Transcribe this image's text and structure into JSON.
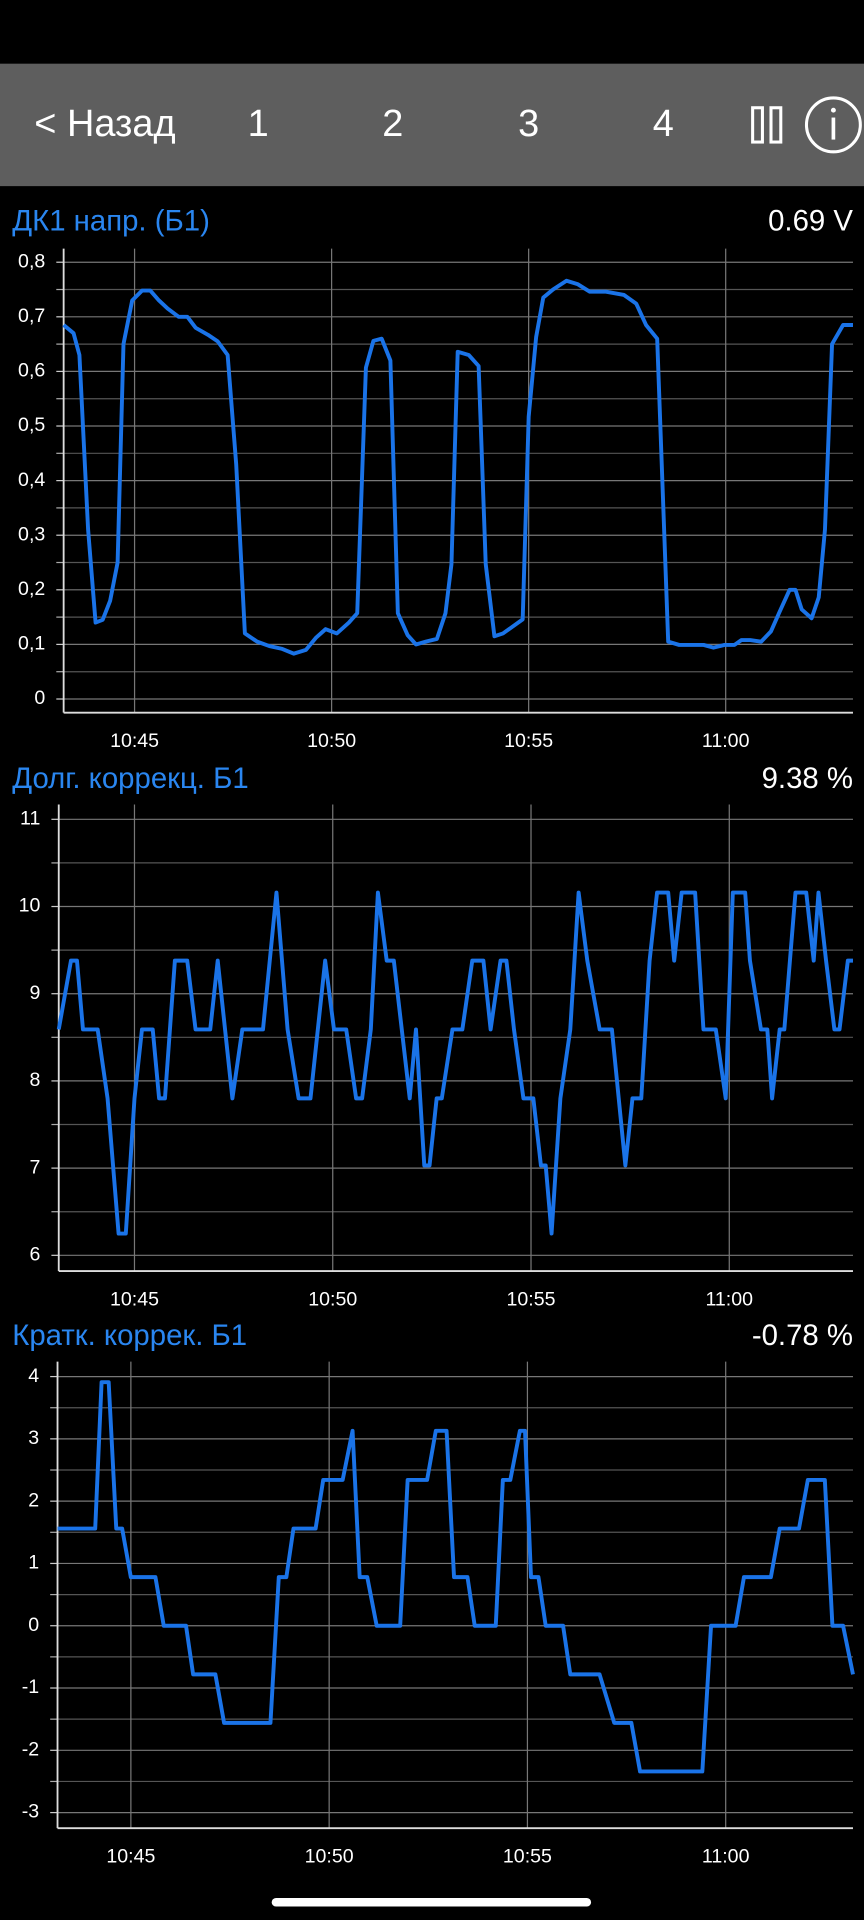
{
  "nav": {
    "back": "< Назад",
    "tabs": [
      "1",
      "2",
      "3",
      "4"
    ]
  },
  "chart_data": [
    {
      "type": "line",
      "title": "ДК1 напр. (Б1)",
      "readout": "0.69  V",
      "color": "#1a73e8",
      "grid": true,
      "xlim": [
        643.2,
        663.23
      ],
      "ylim": [
        -0.025,
        0.825
      ],
      "xticks": [
        {
          "value": 645,
          "label": "10:45"
        },
        {
          "value": 650,
          "label": "10:50"
        },
        {
          "value": 655,
          "label": "10:55"
        },
        {
          "value": 660,
          "label": "11:00"
        }
      ],
      "yticks": [
        {
          "value": 0,
          "label": "0"
        },
        {
          "value": 0.1,
          "label": "0,1"
        },
        {
          "value": 0.2,
          "label": "0,2"
        },
        {
          "value": 0.3,
          "label": "0,3"
        },
        {
          "value": 0.4,
          "label": "0,4"
        },
        {
          "value": 0.5,
          "label": "0,5"
        },
        {
          "value": 0.6,
          "label": "0,6"
        },
        {
          "value": 0.7,
          "label": "0,7"
        },
        {
          "value": 0.8,
          "label": "0,8"
        }
      ],
      "x": [
        643.2,
        643.45,
        643.6,
        643.82,
        644.01,
        644.19,
        644.38,
        644.57,
        644.72,
        644.94,
        645.19,
        645.4,
        645.62,
        645.84,
        646.12,
        646.34,
        646.55,
        646.86,
        647.11,
        647.36,
        647.58,
        647.8,
        648.11,
        648.42,
        648.73,
        649.04,
        649.35,
        649.6,
        649.85,
        650.13,
        650.44,
        650.65,
        650.87,
        651.06,
        651.27,
        651.49,
        651.68,
        651.93,
        652.14,
        652.39,
        652.67,
        652.89,
        653.04,
        653.2,
        653.48,
        653.73,
        653.91,
        654.13,
        654.35,
        654.54,
        654.85,
        655.0,
        655.19,
        655.37,
        655.62,
        655.96,
        656.24,
        656.55,
        656.96,
        657.42,
        657.73,
        657.98,
        658.26,
        658.54,
        658.82,
        659.13,
        659.44,
        659.69,
        659.97,
        660.22,
        660.4,
        660.62,
        660.9,
        661.15,
        661.37,
        661.62,
        661.77,
        661.93,
        662.18,
        662.36,
        662.52,
        662.7,
        662.98,
        663.23
      ],
      "values": [
        0.685,
        0.67,
        0.63,
        0.31,
        0.14,
        0.145,
        0.18,
        0.25,
        0.65,
        0.73,
        0.748,
        0.748,
        0.73,
        0.715,
        0.7,
        0.7,
        0.68,
        0.667,
        0.655,
        0.63,
        0.43,
        0.12,
        0.105,
        0.097,
        0.092,
        0.083,
        0.09,
        0.112,
        0.128,
        0.12,
        0.14,
        0.157,
        0.607,
        0.656,
        0.66,
        0.62,
        0.157,
        0.117,
        0.1,
        0.105,
        0.11,
        0.157,
        0.247,
        0.636,
        0.63,
        0.61,
        0.247,
        0.115,
        0.12,
        0.13,
        0.146,
        0.517,
        0.663,
        0.735,
        0.75,
        0.766,
        0.76,
        0.746,
        0.746,
        0.74,
        0.724,
        0.685,
        0.66,
        0.105,
        0.099,
        0.099,
        0.099,
        0.094,
        0.099,
        0.099,
        0.108,
        0.108,
        0.105,
        0.124,
        0.16,
        0.2,
        0.2,
        0.164,
        0.148,
        0.186,
        0.31,
        0.65,
        0.685,
        0.685
      ]
    },
    {
      "type": "line",
      "title": "Долг. коррекц. Б1",
      "readout": "9.38  %",
      "color": "#1a73e8",
      "grid": true,
      "xlim": [
        643.09,
        663.12
      ],
      "ylim": [
        5.82,
        11.17
      ],
      "xticks": [
        {
          "value": 645,
          "label": "10:45"
        },
        {
          "value": 650,
          "label": "10:50"
        },
        {
          "value": 655,
          "label": "10:55"
        },
        {
          "value": 660,
          "label": "11:00"
        }
      ],
      "yticks": [
        6,
        7,
        8,
        9,
        10,
        11
      ],
      "x": [
        643.09,
        643.4,
        643.55,
        643.7,
        644.07,
        644.32,
        644.6,
        644.78,
        645,
        645.19,
        645.46,
        645.62,
        645.77,
        646.02,
        646.33,
        646.54,
        646.91,
        647.1,
        647.47,
        647.72,
        648.24,
        648.58,
        648.86,
        649.14,
        649.44,
        649.81,
        650.03,
        650.34,
        650.59,
        650.74,
        650.96,
        651.14,
        651.36,
        651.54,
        651.94,
        652.1,
        652.31,
        652.44,
        652.62,
        652.75,
        653.02,
        653.27,
        653.52,
        653.8,
        653.98,
        654.23,
        654.38,
        654.57,
        654.81,
        655.06,
        655.25,
        655.37,
        655.52,
        655.74,
        655.99,
        656.2,
        656.42,
        656.73,
        657.04,
        657.38,
        657.56,
        657.78,
        657.99,
        658.18,
        658.46,
        658.61,
        658.8,
        659.14,
        659.35,
        659.66,
        659.91,
        660.09,
        660.4,
        660.52,
        660.8,
        660.96,
        661.08,
        661.27,
        661.39,
        661.67,
        661.94,
        662.13,
        662.25,
        662.44,
        662.65,
        662.78,
        662.99,
        663.12
      ],
      "values": [
        8.59,
        9.38,
        9.38,
        8.59,
        8.59,
        7.8,
        6.25,
        6.25,
        7.8,
        8.59,
        8.59,
        7.8,
        7.8,
        9.38,
        9.38,
        8.59,
        8.59,
        9.38,
        7.8,
        8.59,
        8.59,
        10.16,
        8.59,
        7.8,
        7.8,
        9.38,
        8.59,
        8.59,
        7.8,
        7.8,
        8.59,
        10.16,
        9.38,
        9.38,
        7.8,
        8.59,
        7.03,
        7.03,
        7.8,
        7.8,
        8.59,
        8.59,
        9.38,
        9.38,
        8.59,
        9.38,
        9.38,
        8.59,
        7.8,
        7.8,
        7.03,
        7.03,
        6.25,
        7.8,
        8.59,
        10.16,
        9.38,
        8.59,
        8.59,
        7.03,
        7.8,
        7.8,
        9.38,
        10.16,
        10.16,
        9.38,
        10.16,
        10.16,
        8.59,
        8.59,
        7.8,
        10.16,
        10.16,
        9.38,
        8.59,
        8.59,
        7.8,
        8.59,
        8.59,
        10.16,
        10.16,
        9.38,
        10.16,
        9.38,
        8.59,
        8.59,
        9.38,
        9.38
      ]
    },
    {
      "type": "line",
      "title": "Кратк. коррек. Б1",
      "readout": "-0.78  %",
      "color": "#1a73e8",
      "grid": true,
      "xlim": [
        643.15,
        663.21
      ],
      "ylim": [
        -3.25,
        4.24
      ],
      "xticks": [
        {
          "value": 645,
          "label": "10:45"
        },
        {
          "value": 650,
          "label": "10:50"
        },
        {
          "value": 655,
          "label": "10:55"
        },
        {
          "value": 660,
          "label": "11:00"
        }
      ],
      "yticks": [
        -3,
        -2,
        -1,
        0,
        1,
        2,
        3,
        4
      ],
      "x": [
        643.15,
        644.1,
        644.26,
        644.44,
        644.63,
        644.78,
        645,
        645.62,
        645.83,
        646.39,
        646.57,
        647.13,
        647.35,
        648.52,
        648.73,
        648.92,
        649.1,
        649.66,
        649.85,
        650.34,
        650.59,
        650.77,
        650.96,
        651.2,
        651.79,
        651.98,
        652.47,
        652.69,
        652.96,
        653.15,
        653.49,
        653.67,
        654.2,
        654.38,
        654.57,
        654.81,
        654.94,
        655.09,
        655.28,
        655.46,
        655.9,
        656.08,
        656.82,
        657.19,
        657.62,
        657.84,
        659.41,
        659.63,
        660.25,
        660.46,
        661.14,
        661.36,
        661.85,
        662.07,
        662.5,
        662.69,
        662.96,
        663.21
      ],
      "values": [
        1.56,
        1.56,
        3.91,
        3.91,
        1.56,
        1.56,
        0.78,
        0.78,
        0,
        0,
        -0.78,
        -0.78,
        -1.56,
        -1.56,
        0.78,
        0.78,
        1.56,
        1.56,
        2.34,
        2.34,
        3.13,
        0.78,
        0.78,
        0,
        0,
        2.34,
        2.34,
        3.13,
        3.13,
        0.78,
        0.78,
        0,
        0,
        2.34,
        2.34,
        3.13,
        3.13,
        0.78,
        0.78,
        0,
        0,
        -0.78,
        -0.78,
        -1.56,
        -1.56,
        -2.34,
        -2.34,
        0,
        0,
        0.78,
        0.78,
        1.56,
        1.56,
        2.34,
        2.34,
        0,
        0,
        -0.78
      ]
    }
  ]
}
